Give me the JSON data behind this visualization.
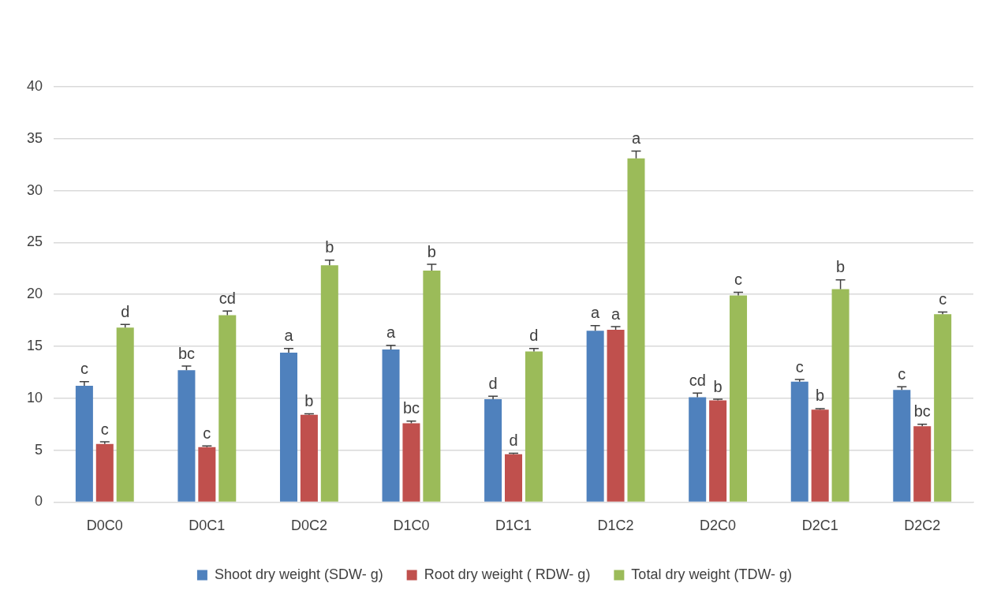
{
  "chart_data": {
    "type": "bar",
    "categories": [
      "D0C0",
      "D0C1",
      "D0C2",
      "D1C0",
      "D1C1",
      "D1C2",
      "D2C0",
      "D2C1",
      "D2C2"
    ],
    "series": [
      {
        "name": "Shoot dry weight (SDW- g)",
        "color": "#4f81bd",
        "values": [
          11.2,
          12.7,
          14.4,
          14.7,
          9.9,
          16.5,
          10.1,
          11.6,
          10.8
        ],
        "errors": [
          [
            11.2,
            11.6
          ],
          [
            12.7,
            13.1
          ],
          [
            14.4,
            14.8
          ],
          [
            14.7,
            15.1
          ],
          [
            9.9,
            10.2
          ],
          [
            16.5,
            17.0
          ],
          [
            10.1,
            10.5
          ],
          [
            11.6,
            11.8
          ],
          [
            10.8,
            11.1
          ]
        ],
        "value_labels": [
          "c",
          "bc",
          "a",
          "a",
          "d",
          "a",
          "cd",
          "c",
          "c"
        ]
      },
      {
        "name": "Root dry weight ( RDW- g)",
        "color": "#c0504d",
        "values": [
          5.6,
          5.3,
          8.4,
          7.6,
          4.6,
          16.6,
          9.8,
          8.9,
          7.3
        ],
        "errors": [
          [
            5.6,
            5.8
          ],
          [
            5.3,
            5.4
          ],
          [
            8.4,
            8.5
          ],
          [
            7.6,
            7.8
          ],
          [
            4.6,
            4.7
          ],
          [
            16.6,
            16.9
          ],
          [
            9.8,
            9.9
          ],
          [
            8.9,
            9.0
          ],
          [
            7.3,
            7.5
          ]
        ],
        "value_labels": [
          "c",
          "c",
          "b",
          "bc",
          "d",
          "a",
          "b",
          "b",
          "bc"
        ]
      },
      {
        "name": "Total dry weight (TDW- g)",
        "color": "#9bbb59",
        "values": [
          16.8,
          18.0,
          22.8,
          22.3,
          14.5,
          33.1,
          19.9,
          20.5,
          18.1
        ],
        "errors": [
          [
            16.8,
            17.1
          ],
          [
            18.0,
            18.4
          ],
          [
            22.8,
            23.3
          ],
          [
            22.3,
            22.9
          ],
          [
            14.5,
            14.8
          ],
          [
            33.1,
            33.8
          ],
          [
            19.9,
            20.2
          ],
          [
            20.5,
            21.4
          ],
          [
            18.1,
            18.3
          ]
        ],
        "value_labels": [
          "d",
          "cd",
          "b",
          "b",
          "d",
          "a",
          "c",
          "b",
          "c"
        ]
      }
    ],
    "ylim": [
      0,
      40
    ],
    "yticks": [
      0,
      5,
      10,
      15,
      20,
      25,
      30,
      35,
      40
    ],
    "grid": "y",
    "legend": "bottom"
  }
}
